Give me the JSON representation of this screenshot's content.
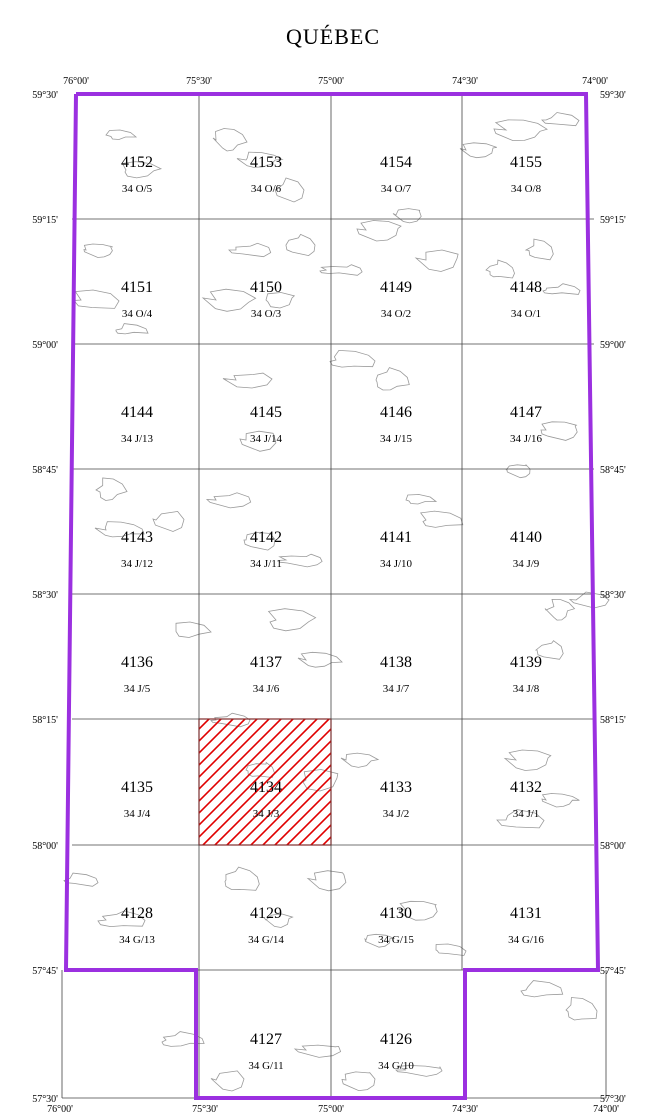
{
  "title": "QUÉBEC",
  "colors": {
    "boundary": "#9b30e0",
    "highlight": "#e00000",
    "grid": "#444444",
    "lakes": "#9a9a9a"
  },
  "longitude_labels": {
    "top": [
      "76°00'",
      "75°30'",
      "75°00'",
      "74°30'",
      "74°00'"
    ],
    "bottom": [
      "76°00'",
      "75°30'",
      "75°00'",
      "74°30'",
      "74°00'"
    ]
  },
  "latitude_labels": {
    "left": [
      "59°30'",
      "59°15'",
      "59°00'",
      "58°45'",
      "58°30'",
      "58°15'",
      "58°00'",
      "57°45'",
      "57°30'"
    ],
    "right": [
      "59°30'",
      "59°15'",
      "59°00'",
      "58°45'",
      "58°30'",
      "58°15'",
      "58°00'",
      "57°45'",
      "57°30'"
    ]
  },
  "selected_sheet": "4134",
  "sheets": [
    {
      "row": 0,
      "col": 0,
      "number": "4152",
      "nts": "34 O/5"
    },
    {
      "row": 0,
      "col": 1,
      "number": "4153",
      "nts": "34 O/6"
    },
    {
      "row": 0,
      "col": 2,
      "number": "4154",
      "nts": "34 O/7"
    },
    {
      "row": 0,
      "col": 3,
      "number": "4155",
      "nts": "34 O/8"
    },
    {
      "row": 1,
      "col": 0,
      "number": "4151",
      "nts": "34 O/4"
    },
    {
      "row": 1,
      "col": 1,
      "number": "4150",
      "nts": "34 O/3"
    },
    {
      "row": 1,
      "col": 2,
      "number": "4149",
      "nts": "34 O/2"
    },
    {
      "row": 1,
      "col": 3,
      "number": "4148",
      "nts": "34 O/1"
    },
    {
      "row": 2,
      "col": 0,
      "number": "4144",
      "nts": "34 J/13"
    },
    {
      "row": 2,
      "col": 1,
      "number": "4145",
      "nts": "34 J/14"
    },
    {
      "row": 2,
      "col": 2,
      "number": "4146",
      "nts": "34 J/15"
    },
    {
      "row": 2,
      "col": 3,
      "number": "4147",
      "nts": "34 J/16"
    },
    {
      "row": 3,
      "col": 0,
      "number": "4143",
      "nts": "34 J/12"
    },
    {
      "row": 3,
      "col": 1,
      "number": "4142",
      "nts": "34 J/11"
    },
    {
      "row": 3,
      "col": 2,
      "number": "4141",
      "nts": "34 J/10"
    },
    {
      "row": 3,
      "col": 3,
      "number": "4140",
      "nts": "34 J/9"
    },
    {
      "row": 4,
      "col": 0,
      "number": "4136",
      "nts": "34 J/5"
    },
    {
      "row": 4,
      "col": 1,
      "number": "4137",
      "nts": "34 J/6"
    },
    {
      "row": 4,
      "col": 2,
      "number": "4138",
      "nts": "34 J/7"
    },
    {
      "row": 4,
      "col": 3,
      "number": "4139",
      "nts": "34 J/8"
    },
    {
      "row": 5,
      "col": 0,
      "number": "4135",
      "nts": "34 J/4"
    },
    {
      "row": 5,
      "col": 1,
      "number": "4134",
      "nts": "34 J/3"
    },
    {
      "row": 5,
      "col": 2,
      "number": "4133",
      "nts": "34 J/2"
    },
    {
      "row": 5,
      "col": 3,
      "number": "4132",
      "nts": "34 J/1"
    },
    {
      "row": 6,
      "col": 0,
      "number": "4128",
      "nts": "34 G/13"
    },
    {
      "row": 6,
      "col": 1,
      "number": "4129",
      "nts": "34 G/14"
    },
    {
      "row": 6,
      "col": 2,
      "number": "4130",
      "nts": "34 G/15"
    },
    {
      "row": 6,
      "col": 3,
      "number": "4131",
      "nts": "34 G/16"
    },
    {
      "row": 7,
      "col": 1,
      "number": "4127",
      "nts": "34 G/11"
    },
    {
      "row": 7,
      "col": 2,
      "number": "4126",
      "nts": "34 G/10"
    }
  ]
}
